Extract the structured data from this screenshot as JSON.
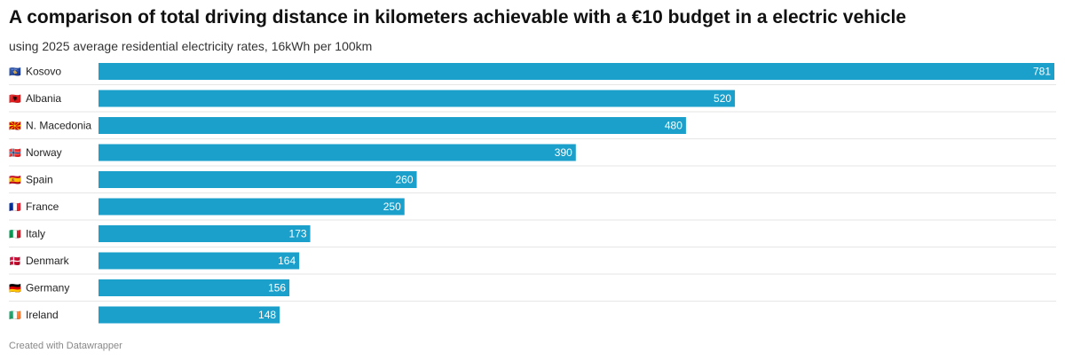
{
  "title": "A comparison of total driving distance in kilometers achievable with a €10 budget in a electric vehicle",
  "subtitle": "using 2025 average residential electricity rates, 16kWh per 100km",
  "footer": "Created with Datawrapper",
  "colors": {
    "bar": "#1ba0cc",
    "separator": "#e6e6e6"
  },
  "chart_data": {
    "type": "bar",
    "orientation": "horizontal",
    "title": "A comparison of total driving distance in kilometers achievable with a €10 budget in a electric vehicle",
    "xlabel": "",
    "ylabel": "",
    "xlim": [
      0,
      781
    ],
    "categories": [
      "Kosovo",
      "Albania",
      "N. Macedonia",
      "Norway",
      "Spain",
      "France",
      "Italy",
      "Denmark",
      "Germany",
      "Ireland"
    ],
    "flags": [
      "🇽🇰",
      "🇦🇱",
      "🇲🇰",
      "🇳🇴",
      "🇪🇸",
      "🇫🇷",
      "🇮🇹",
      "🇩🇰",
      "🇩🇪",
      "🇮🇪"
    ],
    "values": [
      781,
      520,
      480,
      390,
      260,
      250,
      173,
      164,
      156,
      148
    ],
    "unit": "km"
  }
}
